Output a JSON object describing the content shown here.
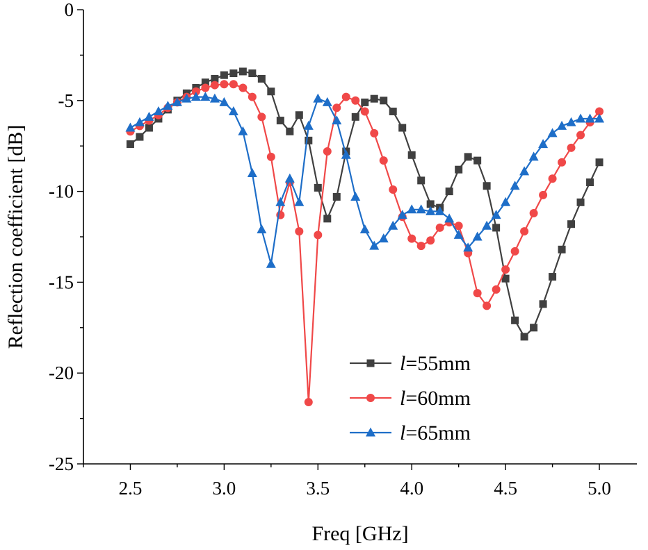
{
  "chart_data": {
    "type": "line",
    "title": "",
    "xlabel": "Freq [GHz]",
    "ylabel": "Reflection coefficient [dB]",
    "xlim": [
      2.25,
      5.2
    ],
    "ylim": [
      -25,
      0
    ],
    "xticks": [
      "2.5",
      "3.0",
      "3.5",
      "4.0",
      "4.5",
      "5.0"
    ],
    "xtick_values": [
      2.5,
      3.0,
      3.5,
      4.0,
      4.5,
      5.0
    ],
    "yticks": [
      "0",
      "-5",
      "-10",
      "-15",
      "-20",
      "-25"
    ],
    "ytick_values": [
      0,
      -5,
      -10,
      -15,
      -20,
      -25
    ],
    "legend_position": "bottom-right",
    "x": [
      2.5,
      2.55,
      2.6,
      2.65,
      2.7,
      2.75,
      2.8,
      2.85,
      2.9,
      2.95,
      3.0,
      3.05,
      3.1,
      3.15,
      3.2,
      3.25,
      3.3,
      3.35,
      3.4,
      3.45,
      3.5,
      3.55,
      3.6,
      3.65,
      3.7,
      3.75,
      3.8,
      3.85,
      3.9,
      3.95,
      4.0,
      4.05,
      4.1,
      4.15,
      4.2,
      4.25,
      4.3,
      4.35,
      4.4,
      4.45,
      4.5,
      4.55,
      4.6,
      4.65,
      4.7,
      4.75,
      4.8,
      4.85,
      4.9,
      4.95,
      5.0
    ],
    "series": [
      {
        "name": "l=55mm",
        "prefix": "l",
        "suffix": "=55mm",
        "color": "#404040",
        "marker": "square",
        "values": [
          -7.4,
          -7.0,
          -6.5,
          -6.0,
          -5.5,
          -5.0,
          -4.6,
          -4.3,
          -4.0,
          -3.8,
          -3.6,
          -3.5,
          -3.4,
          -3.5,
          -3.8,
          -4.5,
          -6.1,
          -6.7,
          -5.8,
          -7.2,
          -9.8,
          -11.5,
          -10.3,
          -7.8,
          -5.9,
          -5.1,
          -4.9,
          -5.0,
          -5.6,
          -6.5,
          -8.0,
          -9.4,
          -10.7,
          -10.9,
          -10.0,
          -8.8,
          -8.1,
          -8.3,
          -9.7,
          -12.0,
          -14.8,
          -17.1,
          -18.0,
          -17.5,
          -16.2,
          -14.7,
          -13.2,
          -11.8,
          -10.6,
          -9.5,
          -8.4
        ]
      },
      {
        "name": "l=60mm",
        "prefix": "l",
        "suffix": "=60mm",
        "color": "#f04848",
        "marker": "circle",
        "values": [
          -6.7,
          -6.4,
          -6.1,
          -5.8,
          -5.4,
          -5.1,
          -4.8,
          -4.5,
          -4.3,
          -4.15,
          -4.1,
          -4.1,
          -4.3,
          -4.8,
          -5.9,
          -8.1,
          -11.3,
          -9.5,
          -12.2,
          -21.6,
          -12.4,
          -7.8,
          -5.4,
          -4.8,
          -5.0,
          -5.6,
          -6.8,
          -8.3,
          -9.9,
          -11.4,
          -12.6,
          -13.0,
          -12.7,
          -12.0,
          -11.7,
          -11.9,
          -13.4,
          -15.6,
          -16.3,
          -15.4,
          -14.3,
          -13.3,
          -12.2,
          -11.2,
          -10.2,
          -9.3,
          -8.4,
          -7.6,
          -6.9,
          -6.2,
          -5.6
        ]
      },
      {
        "name": "l=65mm",
        "prefix": "l",
        "suffix": "=65mm",
        "color": "#1e6ec8",
        "marker": "triangle",
        "values": [
          -6.5,
          -6.2,
          -5.9,
          -5.6,
          -5.3,
          -5.1,
          -4.9,
          -4.8,
          -4.8,
          -4.9,
          -5.1,
          -5.6,
          -6.7,
          -9.0,
          -12.1,
          -14.0,
          -10.6,
          -9.3,
          -10.6,
          -6.4,
          -4.9,
          -5.1,
          -6.1,
          -8.0,
          -10.3,
          -12.1,
          -13.0,
          -12.6,
          -11.9,
          -11.3,
          -11.0,
          -11.0,
          -11.1,
          -11.1,
          -11.5,
          -12.4,
          -13.1,
          -12.5,
          -11.9,
          -11.3,
          -10.6,
          -9.7,
          -8.9,
          -8.1,
          -7.4,
          -6.8,
          -6.4,
          -6.2,
          -6.0,
          -6.0,
          -6.0
        ]
      }
    ]
  }
}
